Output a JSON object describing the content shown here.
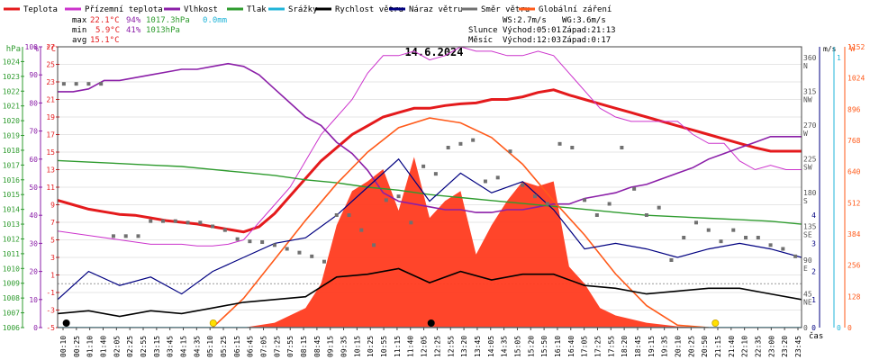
{
  "legend": [
    {
      "label": "Teplota",
      "color": "#e41a1c"
    },
    {
      "label": "Přízemní teplota",
      "color": "#cc33cc"
    },
    {
      "label": "Vlhkost",
      "color": "#8b1fa8"
    },
    {
      "label": "Tlak",
      "color": "#2e9b2e"
    },
    {
      "label": "Srážky",
      "color": "#20b4d8"
    },
    {
      "label": "Rychlost větru",
      "color": "#000000"
    },
    {
      "label": "Náraz větru",
      "color": "#000080"
    },
    {
      "label": "Směr větru",
      "color": "#707070"
    },
    {
      "label": "Globální záření",
      "color": "#ff5a1a"
    }
  ],
  "stats": {
    "max": {
      "label": "max",
      "temp": "22.1°C",
      "hum": "94%",
      "press": "1017.3hPa",
      "rain": "0.0mm"
    },
    "min": {
      "label": "min",
      "temp": "5.9°C",
      "hum": "41%",
      "press": "1013hPa"
    },
    "avg": {
      "label": "avg",
      "temp": "15.1°C"
    }
  },
  "wind_info": {
    "ws": "WS:2.7m/s",
    "wg": "WG:3.6m/s"
  },
  "sun": {
    "label": "Slunce",
    "rise": "Východ:05:01",
    "set": "Západ:21:13"
  },
  "moon": {
    "label": "Měsíc",
    "rise": "Východ:12:03",
    "set": "Západ:0:17"
  },
  "chart_data": {
    "type": "line",
    "title": "14.6.2024",
    "xlabel": "čas",
    "x_ticks": [
      "00:10",
      "00:25",
      "01:10",
      "01:40",
      "02:05",
      "02:25",
      "02:55",
      "03:15",
      "03:45",
      "04:15",
      "04:35",
      "05:10",
      "05:25",
      "06:15",
      "06:45",
      "07:05",
      "07:25",
      "07:55",
      "08:15",
      "08:45",
      "09:15",
      "09:35",
      "10:15",
      "10:25",
      "10:55",
      "11:15",
      "11:40",
      "12:05",
      "12:25",
      "12:55",
      "13:20",
      "13:45",
      "14:05",
      "14:35",
      "15:05",
      "15:20",
      "15:50",
      "16:10",
      "16:40",
      "17:05",
      "17:25",
      "17:55",
      "18:20",
      "18:45",
      "19:15",
      "19:35",
      "20:10",
      "20:25",
      "20:50",
      "21:15",
      "21:40",
      "22:10",
      "22:35",
      "23:00",
      "23:20",
      "23:45"
    ],
    "axes": {
      "hpa": {
        "label": "hPa",
        "min": 1006,
        "max": 1025,
        "ticks": [
          1006,
          1007,
          1008,
          1009,
          1010,
          1011,
          1012,
          1013,
          1014,
          1015,
          1016,
          1017,
          1018,
          1019,
          1020,
          1021,
          1022,
          1023,
          1024
        ]
      },
      "percent": {
        "label": "%",
        "min": 0,
        "max": 100,
        "ticks": [
          0,
          10,
          20,
          30,
          40,
          50,
          60,
          70,
          80,
          90,
          100
        ]
      },
      "celsius": {
        "label": "°C",
        "min": -5,
        "max": 27,
        "ticks": [
          -5,
          -3,
          -1,
          1,
          3,
          5,
          7,
          9,
          11,
          13,
          15,
          17,
          19,
          21,
          23,
          25,
          27
        ]
      },
      "direction": {
        "label": "m/s",
        "ticks": [
          0,
          45,
          90,
          135,
          180,
          225,
          270,
          315,
          360
        ],
        "names": [
          "",
          "NE",
          "E",
          "SE",
          "S",
          "SW",
          "W",
          "NW",
          "N"
        ]
      },
      "wind": {
        "label": "mm",
        "min": 0,
        "max": 10,
        "ticks": [
          0,
          1,
          2,
          3,
          4
        ]
      },
      "rain": {
        "label": "",
        "ticks": [
          0,
          1
        ]
      },
      "radiation": {
        "label": "W",
        "min": 0,
        "max": 1152,
        "ticks": [
          0,
          128,
          256,
          384,
          512,
          640,
          768,
          896,
          1024,
          1152
        ]
      }
    },
    "x_range_hours": [
      0,
      24
    ],
    "series": [
      {
        "name": "Teplota",
        "axis": "celsius",
        "hours": [
          0,
          0.5,
          1,
          1.5,
          2,
          2.5,
          3,
          3.5,
          4,
          4.5,
          5,
          5.5,
          6,
          6.5,
          7,
          7.5,
          8,
          8.5,
          9,
          9.5,
          10,
          10.5,
          11,
          11.5,
          12,
          12.5,
          13,
          13.5,
          14,
          14.5,
          15,
          15.5,
          16,
          16.5,
          17,
          17.5,
          18,
          18.5,
          19,
          19.5,
          20,
          20.5,
          21,
          21.5,
          22,
          22.5,
          23,
          23.5,
          24
        ],
        "values": [
          9.5,
          9,
          8.5,
          8.2,
          7.9,
          7.8,
          7.5,
          7.2,
          7,
          6.8,
          6.5,
          6.2,
          5.9,
          6.5,
          8,
          10,
          12,
          14,
          15.5,
          17,
          18,
          19,
          19.5,
          20,
          20,
          20.3,
          20.5,
          20.6,
          21,
          21,
          21.3,
          21.8,
          22.1,
          21.5,
          21,
          20.5,
          20,
          19.5,
          19,
          18.5,
          18,
          17.5,
          17,
          16.5,
          16,
          15.5,
          15.1,
          15.1,
          15.1
        ]
      },
      {
        "name": "Přízemní teplota",
        "axis": "celsius",
        "hours": [
          0,
          1,
          2,
          3,
          4,
          4.5,
          5,
          5.5,
          6,
          6.5,
          7,
          7.5,
          8,
          8.5,
          9,
          9.5,
          10,
          10.5,
          11,
          11.5,
          12,
          12.5,
          13,
          13.5,
          14,
          14.5,
          15,
          15.5,
          16,
          16.5,
          17,
          17.5,
          18,
          18.5,
          19,
          19.5,
          20,
          20.5,
          21,
          21.5,
          22,
          22.5,
          23,
          23.5,
          24
        ],
        "values": [
          6,
          5.5,
          5,
          4.5,
          4.5,
          4.3,
          4.3,
          4.5,
          5,
          7,
          9,
          11,
          14,
          17,
          19,
          21,
          24,
          26,
          26,
          26.5,
          25.5,
          26,
          27,
          26.5,
          26.5,
          26,
          26,
          26.5,
          26,
          24,
          22,
          20,
          19,
          18.5,
          18.5,
          18.5,
          18.5,
          17,
          16,
          16,
          14,
          13,
          13.5,
          13,
          13
        ]
      },
      {
        "name": "Vlhkost",
        "axis": "percent",
        "hours": [
          0,
          0.5,
          1,
          1.5,
          2,
          2.5,
          3,
          3.5,
          4,
          4.5,
          5,
          5.5,
          6,
          6.5,
          7,
          7.5,
          8,
          8.5,
          9,
          9.5,
          10,
          10.5,
          11,
          11.5,
          12,
          12.5,
          13,
          13.5,
          14,
          14.5,
          15,
          15.5,
          16,
          16.5,
          17,
          17.5,
          18,
          18.5,
          19,
          19.5,
          20,
          20.5,
          21,
          21.5,
          22,
          22.5,
          23,
          23.5,
          24
        ],
        "values": [
          84,
          84,
          85,
          88,
          88,
          89,
          90,
          91,
          92,
          92,
          93,
          94,
          93,
          90,
          85,
          80,
          75,
          72,
          66,
          62,
          56,
          48,
          45,
          44,
          43,
          42,
          42,
          41,
          41,
          42,
          42,
          43,
          44,
          44,
          46,
          47,
          48,
          50,
          51,
          53,
          55,
          57,
          60,
          62,
          64,
          66,
          68,
          68,
          68
        ]
      },
      {
        "name": "Tlak",
        "axis": "hpa",
        "hours": [
          0,
          1,
          2,
          3,
          4,
          5,
          6,
          7,
          8,
          9,
          10,
          11,
          12,
          13,
          14,
          15,
          16,
          17,
          18,
          19,
          20,
          21,
          22,
          23,
          24
        ],
        "values": [
          1017.3,
          1017.2,
          1017.1,
          1017,
          1016.9,
          1016.7,
          1016.5,
          1016.3,
          1016,
          1015.8,
          1015.5,
          1015.3,
          1015,
          1014.8,
          1014.6,
          1014.4,
          1014.2,
          1014,
          1013.8,
          1013.6,
          1013.5,
          1013.4,
          1013.3,
          1013.2,
          1013
        ]
      },
      {
        "name": "Globální záření",
        "axis": "radiation",
        "hours": [
          5,
          6,
          7,
          8,
          9,
          10,
          11,
          12,
          13,
          14,
          15,
          16,
          17,
          18,
          19,
          20,
          21
        ],
        "values": [
          0,
          120,
          280,
          440,
          590,
          720,
          820,
          860,
          840,
          780,
          670,
          520,
          380,
          220,
          90,
          10,
          0
        ]
      },
      {
        "name": "Rychlost větru",
        "axis": "wind",
        "hours": [
          0,
          1,
          2,
          3,
          4,
          5,
          6,
          7,
          8,
          9,
          10,
          11,
          12,
          13,
          14,
          15,
          16,
          17,
          18,
          19,
          20,
          21,
          22,
          23,
          24
        ],
        "values": [
          0.5,
          0.6,
          0.4,
          0.6,
          0.5,
          0.7,
          0.9,
          1.0,
          1.1,
          1.8,
          1.9,
          2.1,
          1.6,
          2.0,
          1.7,
          1.9,
          1.9,
          1.5,
          1.4,
          1.2,
          1.3,
          1.4,
          1.4,
          1.2,
          1.0
        ]
      },
      {
        "name": "Náraz větru",
        "axis": "wind",
        "hours": [
          0,
          1,
          2,
          3,
          4,
          5,
          6,
          7,
          8,
          9,
          10,
          11,
          12,
          13,
          14,
          15,
          16,
          17,
          18,
          19,
          20,
          21,
          22,
          23,
          24
        ],
        "values": [
          1.0,
          2.0,
          1.5,
          1.8,
          1.2,
          2.0,
          2.5,
          3.0,
          3.2,
          4.0,
          5.0,
          6.0,
          4.5,
          5.5,
          4.8,
          5.2,
          4.2,
          2.8,
          3.0,
          2.8,
          2.5,
          2.8,
          3.0,
          2.8,
          2.5
        ]
      }
    ],
    "measured_radiation": {
      "axis": "radiation",
      "hours": [
        6,
        7,
        8,
        8.5,
        9,
        9.5,
        10,
        10.5,
        11,
        11.5,
        12,
        12.5,
        13,
        13.5,
        14,
        14.5,
        15,
        15.5,
        16,
        16.5,
        17,
        17.5,
        18,
        19,
        20,
        21
      ],
      "values": [
        0,
        20,
        80,
        180,
        420,
        560,
        600,
        650,
        480,
        700,
        450,
        520,
        560,
        300,
        420,
        520,
        600,
        580,
        600,
        250,
        180,
        80,
        50,
        20,
        5,
        0
      ]
    },
    "wind_direction_points": {
      "axis": "direction",
      "hours": [
        0.2,
        0.6,
        1.0,
        1.4,
        1.8,
        2.2,
        2.6,
        3.0,
        3.4,
        3.8,
        4.2,
        4.6,
        5.0,
        5.4,
        5.8,
        6.2,
        6.6,
        7.0,
        7.4,
        7.8,
        8.2,
        8.6,
        9.0,
        9.4,
        9.8,
        10.2,
        10.6,
        11.0,
        11.4,
        11.8,
        12.2,
        12.6,
        13.0,
        13.4,
        13.8,
        14.2,
        14.6,
        15.0,
        15.4,
        15.8,
        16.2,
        16.6,
        17.0,
        17.4,
        17.8,
        18.2,
        18.6,
        19.0,
        19.4,
        19.8,
        20.2,
        20.6,
        21.0,
        21.4,
        21.8,
        22.2,
        22.6,
        23.0,
        23.4,
        23.8
      ],
      "values": [
        325,
        325,
        325,
        325,
        122,
        122,
        122,
        142,
        142,
        142,
        140,
        140,
        135,
        130,
        118,
        115,
        114,
        110,
        105,
        100,
        95,
        88,
        150,
        150,
        130,
        110,
        170,
        175,
        140,
        215,
        205,
        240,
        245,
        250,
        195,
        200,
        235,
        190,
        175,
        165,
        245,
        240,
        170,
        150,
        165,
        240,
        185,
        150,
        160,
        90,
        120,
        140,
        130,
        115,
        130,
        120,
        120,
        110,
        105,
        95
      ]
    },
    "rain_values": {
      "axis": "rain",
      "hours": [
        0,
        24
      ],
      "values": [
        0,
        0
      ]
    },
    "markers": [
      {
        "hour": 5.02,
        "type": "sunrise"
      },
      {
        "hour": 21.22,
        "type": "sunset"
      },
      {
        "hour": 0.28,
        "type": "moonset"
      },
      {
        "hour": 12.05,
        "type": "moonrise"
      }
    ]
  }
}
